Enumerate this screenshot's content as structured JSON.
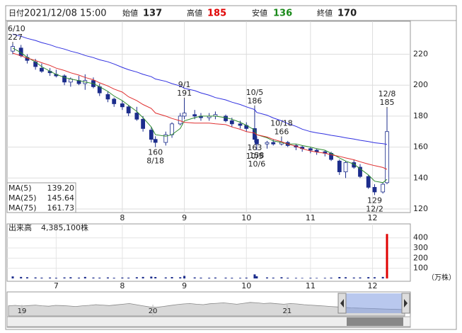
{
  "header": {
    "date_label": "日付",
    "date": "2021/12/08 15:00",
    "open_label": "始値",
    "open": 137,
    "high_label": "高値",
    "high": 185,
    "low_label": "安値",
    "low": 136,
    "close_label": "終値",
    "close": 170
  },
  "chart_data": [
    {
      "type": "candlestick",
      "x": [
        "6/10",
        "6/14",
        "6/17",
        "6/21",
        "6/24",
        "6/28",
        "7/1",
        "7/5",
        "7/8",
        "7/12",
        "7/15",
        "7/19",
        "7/22",
        "7/26",
        "7/29",
        "8/2",
        "8/5",
        "8/9",
        "8/12",
        "8/16",
        "8/18",
        "8/23",
        "8/26",
        "8/30",
        "9/1",
        "9/6",
        "9/9",
        "9/13",
        "9/16",
        "9/21",
        "9/24",
        "9/28",
        "10/1",
        "10/5",
        "10/6",
        "10/11",
        "10/14",
        "10/18",
        "10/21",
        "10/25",
        "10/28",
        "11/1",
        "11/4",
        "11/8",
        "11/11",
        "11/15",
        "11/18",
        "11/22",
        "11/25",
        "11/29",
        "12/2",
        "12/6",
        "12/8"
      ],
      "open": [
        222,
        224,
        218,
        215,
        211,
        209,
        207,
        206,
        202,
        203,
        201,
        203,
        199,
        194,
        191,
        188,
        186,
        182,
        178,
        171,
        165,
        163,
        168,
        175,
        180,
        181,
        180,
        179,
        180,
        180,
        177,
        175,
        174,
        172,
        165,
        162,
        163,
        162,
        163,
        161,
        160,
        159,
        158,
        157,
        156,
        151,
        144,
        150,
        147,
        141,
        134,
        131,
        137
      ],
      "high": [
        227,
        226,
        220,
        217,
        214,
        211,
        210,
        207,
        205,
        206,
        207,
        205,
        201,
        196,
        192,
        190,
        187,
        186,
        180,
        173,
        167,
        170,
        176,
        182,
        191,
        184,
        182,
        182,
        183,
        181,
        179,
        177,
        176,
        186,
        167,
        164,
        165,
        166,
        164,
        162,
        161,
        160,
        159,
        158,
        157,
        152,
        151,
        152,
        149,
        142,
        136,
        137,
        185
      ],
      "low": [
        220,
        218,
        214,
        210,
        208,
        206,
        205,
        200,
        199,
        200,
        197,
        198,
        193,
        189,
        186,
        184,
        180,
        177,
        170,
        163,
        160,
        161,
        166,
        174,
        178,
        178,
        177,
        177,
        178,
        176,
        173,
        172,
        170,
        163,
        158,
        159,
        161,
        161,
        160,
        158,
        157,
        156,
        155,
        154,
        151,
        142,
        140,
        146,
        140,
        133,
        129,
        130,
        136
      ],
      "close": [
        225,
        219,
        216,
        212,
        209,
        208,
        206,
        202,
        204,
        201,
        203,
        199,
        195,
        191,
        188,
        186,
        182,
        178,
        172,
        165,
        163,
        168,
        175,
        180,
        182,
        180,
        179,
        180,
        181,
        177,
        175,
        174,
        172,
        165,
        162,
        163,
        162,
        163,
        161,
        160,
        159,
        158,
        157,
        156,
        152,
        144,
        150,
        147,
        141,
        134,
        131,
        136,
        170
      ],
      "up_color": "#ffffff",
      "down_color": "#1c2d8c",
      "outline_color": "#1c2d8c",
      "series": [
        {
          "name": "MA(5)",
          "color": "#2e8b2e",
          "last_label": "139.20",
          "values": [
            224,
            221,
            218,
            215,
            212,
            209,
            207,
            205,
            204,
            203,
            202,
            201,
            199,
            196,
            193,
            190,
            187,
            183,
            179,
            173,
            168,
            167,
            168,
            172,
            177,
            179,
            180,
            180,
            180,
            179,
            178,
            176,
            174,
            171,
            168,
            166,
            164,
            163,
            162,
            162,
            161,
            160,
            159,
            158,
            156,
            153,
            151,
            149,
            146,
            142,
            138,
            137,
            139.2
          ]
        },
        {
          "name": "MA(25)",
          "color": "#e03030",
          "last_label": "145.64",
          "values": [
            220.7,
            219,
            217.5,
            216,
            214.5,
            212.8,
            211,
            209.5,
            208,
            206.5,
            205,
            203.5,
            201.5,
            199.5,
            197.5,
            195.5,
            192.5,
            190,
            187.5,
            185,
            182,
            180,
            178.5,
            177,
            176,
            175.5,
            175.5,
            175.5,
            175,
            174.5,
            173,
            171.5,
            170,
            169,
            168,
            166.5,
            165,
            163.5,
            162,
            160.5,
            159,
            157.5,
            156.8,
            156,
            155,
            154,
            153,
            151.8,
            150.5,
            149,
            148,
            146.8,
            145.64
          ]
        },
        {
          "name": "MA(75)",
          "color": "#3030e0",
          "last_label": "161.73",
          "values": [
            233,
            231.6,
            230.2,
            228.9,
            227.5,
            226.1,
            224.7,
            223.3,
            222,
            220.6,
            219.2,
            217.8,
            216.4,
            215.1,
            213.7,
            211.5,
            210,
            208.5,
            207,
            205.5,
            204,
            202.5,
            201,
            199.5,
            198,
            196.5,
            195,
            193.5,
            192,
            190.5,
            189,
            187.5,
            186,
            184.2,
            182.4,
            180.6,
            178.8,
            177,
            175.2,
            173.4,
            171.6,
            170,
            169.2,
            168.4,
            167.6,
            166.8,
            166,
            165.2,
            164.4,
            163.6,
            162.8,
            162.2,
            161.73
          ]
        }
      ],
      "annotations": [
        {
          "date": "6/10",
          "value": 227,
          "position": "above"
        },
        {
          "date": "9/1",
          "value": 191,
          "position": "above"
        },
        {
          "date": "10/5",
          "value": 186,
          "position": "above"
        },
        {
          "date": "10/18",
          "value": 166,
          "position": "above"
        },
        {
          "date": "12/8",
          "value": 185,
          "position": "above"
        },
        {
          "date": "8/18",
          "value": 160,
          "position": "below"
        },
        {
          "date": "10/5",
          "value": 163,
          "position": "below"
        },
        {
          "date": "10/6",
          "value": 158,
          "position": "below"
        },
        {
          "date": "12/2",
          "value": 129,
          "position": "below"
        }
      ],
      "ylim": [
        117.7,
        241.3
      ],
      "yticks": [
        120,
        140,
        160,
        180,
        200,
        220
      ],
      "xticks": [
        {
          "value": "8/2",
          "label": "8"
        },
        {
          "value": "9/1",
          "label": "9"
        },
        {
          "value": "10/1",
          "label": "10"
        },
        {
          "value": "11/1",
          "label": "11"
        },
        {
          "value": "12/1",
          "label": "12"
        }
      ],
      "grid": true
    },
    {
      "type": "bar",
      "title": "出来高",
      "latest": {
        "value": 4385100,
        "label": "4,385,100株"
      },
      "x": [
        "6/10",
        "6/14",
        "6/17",
        "6/21",
        "6/24",
        "6/28",
        "7/1",
        "7/5",
        "7/8",
        "7/12",
        "7/15",
        "7/19",
        "7/22",
        "7/26",
        "7/29",
        "8/2",
        "8/5",
        "8/9",
        "8/12",
        "8/16",
        "8/18",
        "8/23",
        "8/26",
        "8/30",
        "9/1",
        "9/6",
        "9/9",
        "9/13",
        "9/16",
        "9/21",
        "9/24",
        "9/28",
        "10/1",
        "10/5",
        "10/6",
        "10/11",
        "10/14",
        "10/18",
        "10/21",
        "10/25",
        "10/28",
        "11/1",
        "11/4",
        "11/8",
        "11/11",
        "11/15",
        "11/18",
        "11/22",
        "11/25",
        "11/29",
        "12/2",
        "12/6",
        "12/8"
      ],
      "values": [
        20,
        15,
        12,
        10,
        8,
        9,
        7,
        10,
        12,
        8,
        15,
        9,
        8,
        10,
        7,
        9,
        8,
        12,
        15,
        18,
        14,
        10,
        14,
        12,
        25,
        10,
        8,
        7,
        9,
        8,
        7,
        6,
        8,
        40,
        22,
        10,
        8,
        12,
        7,
        6,
        5,
        6,
        5,
        6,
        8,
        14,
        12,
        9,
        10,
        13,
        12,
        15,
        438.51
      ],
      "color": "#1c2d8c",
      "last_color": "#e00000",
      "unit": "（万株）",
      "ylim": [
        0,
        524
      ],
      "yticks": [
        100,
        200,
        300,
        400
      ],
      "xticks": [
        {
          "value": "7/1",
          "label": "7"
        },
        {
          "value": "8/2",
          "label": "8"
        },
        {
          "value": "9/1",
          "label": "9"
        },
        {
          "value": "10/1",
          "label": "10"
        },
        {
          "value": "11/1",
          "label": "11"
        },
        {
          "value": "12/1",
          "label": "12"
        }
      ],
      "grid": true
    },
    {
      "type": "area",
      "values": [
        45,
        47,
        44,
        46,
        48,
        45,
        43,
        47,
        46,
        44,
        42,
        45,
        47,
        50,
        48,
        46,
        49,
        52,
        55,
        50,
        45,
        40,
        38,
        42,
        46,
        50,
        53,
        55,
        52,
        50,
        54,
        56,
        58,
        55,
        52,
        56,
        60,
        58,
        55,
        57,
        54,
        52,
        55,
        53,
        50,
        48,
        46,
        44,
        42,
        40,
        38,
        36,
        35,
        34,
        33,
        32,
        31,
        30,
        29,
        28
      ],
      "color": "#d8d8d8",
      "xlim": [
        0,
        59
      ],
      "ylim": [
        0,
        100
      ],
      "xticks": [
        {
          "value": 2,
          "label": "19"
        },
        {
          "value": 21.5,
          "label": "20"
        },
        {
          "value": 41.5,
          "label": "21"
        }
      ]
    }
  ]
}
